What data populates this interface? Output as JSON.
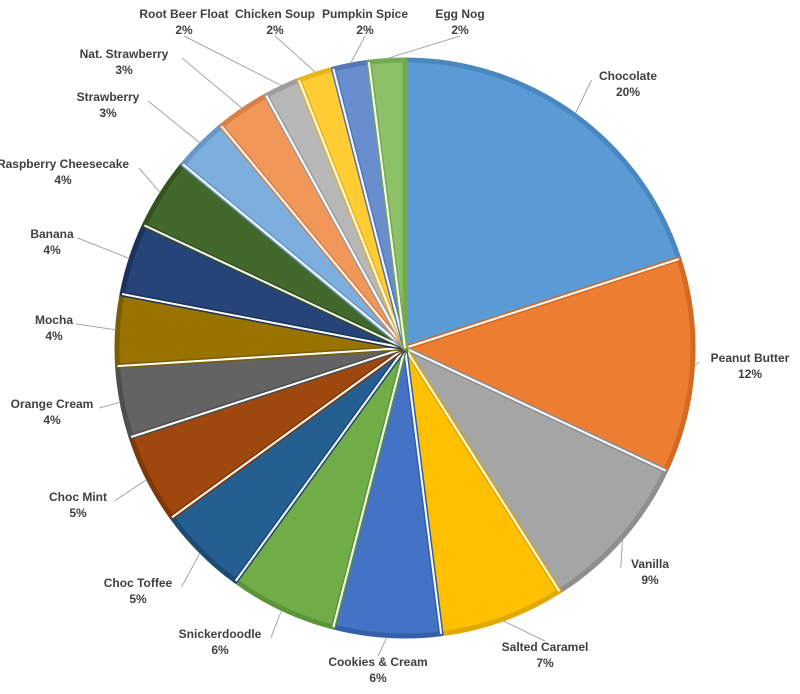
{
  "chart_data": {
    "type": "pie",
    "title": "",
    "start_angle": "12 o'clock",
    "direction": "clockwise",
    "legend": "none",
    "data_labels": "category name and percentage, outside with leader lines",
    "slices": [
      {
        "label": "Chocolate",
        "value": 20,
        "pct": "20%",
        "color": "#5B9BD5",
        "border": "#4A87C0"
      },
      {
        "label": "Peanut Butter",
        "value": 12,
        "pct": "12%",
        "color": "#ED7D31",
        "border": "#D46A22"
      },
      {
        "label": "Vanilla",
        "value": 9,
        "pct": "9%",
        "color": "#A5A5A5",
        "border": "#8E8E8E"
      },
      {
        "label": "Salted Caramel",
        "value": 7,
        "pct": "7%",
        "color": "#FFC000",
        "border": "#E0A800"
      },
      {
        "label": "Cookies & Cream",
        "value": 6,
        "pct": "6%",
        "color": "#4472C4",
        "border": "#355FA8"
      },
      {
        "label": "Snickerdoodle",
        "value": 6,
        "pct": "6%",
        "color": "#70AD47",
        "border": "#5C9438"
      },
      {
        "label": "Choc Toffee",
        "value": 5,
        "pct": "5%",
        "color": "#255E91",
        "border": "#1B4A74"
      },
      {
        "label": "Choc Mint",
        "value": 5,
        "pct": "5%",
        "color": "#9E480E",
        "border": "#7F3808"
      },
      {
        "label": "Orange Cream",
        "value": 4,
        "pct": "4%",
        "color": "#636363",
        "border": "#4E4E4E"
      },
      {
        "label": "Mocha",
        "value": 4,
        "pct": "4%",
        "color": "#997300",
        "border": "#7C5D00"
      },
      {
        "label": "Banana",
        "value": 4,
        "pct": "4%",
        "color": "#264478",
        "border": "#1B335C"
      },
      {
        "label": "Raspberry Cheesecake",
        "value": 4,
        "pct": "4%",
        "color": "#43682B",
        "border": "#33521F"
      },
      {
        "label": "Strawberry",
        "value": 3,
        "pct": "3%",
        "color": "#7CAFDD",
        "border": "#6598C8"
      },
      {
        "label": "Nat. Strawberry",
        "value": 3,
        "pct": "3%",
        "color": "#F1975A",
        "border": "#D98046"
      },
      {
        "label": "Root Beer Float",
        "value": 2,
        "pct": "2%",
        "color": "#B7B7B7",
        "border": "#9E9E9E"
      },
      {
        "label": "Chicken Soup",
        "value": 2,
        "pct": "2%",
        "color": "#FFCD33",
        "border": "#E8B520"
      },
      {
        "label": "Pumpkin Spice",
        "value": 2,
        "pct": "2%",
        "color": "#698ED0",
        "border": "#5577BA"
      },
      {
        "label": "Egg Nog",
        "value": 2,
        "pct": "2%",
        "color": "#8CC168",
        "border": "#74A952"
      }
    ]
  }
}
